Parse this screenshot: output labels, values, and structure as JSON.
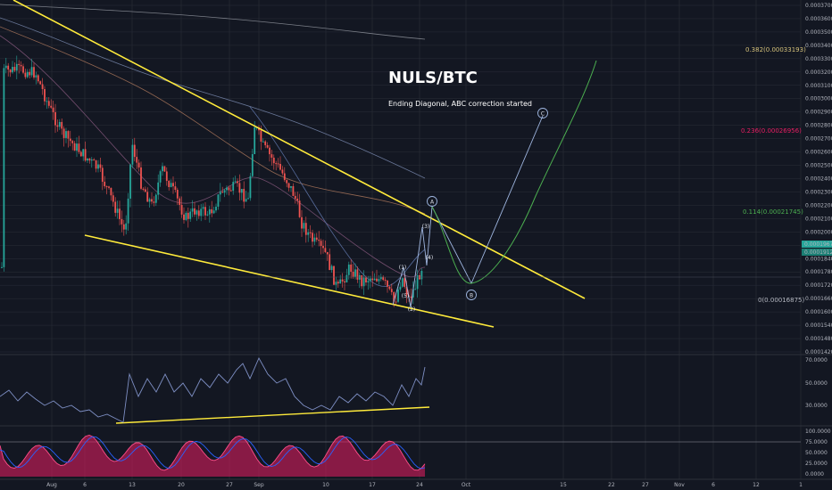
{
  "chart_data": {
    "type": "candlestick",
    "title": "NULS/BTC",
    "subtitle": "Ending Diagonal, ABC correction started",
    "colors": {
      "background": "#131722",
      "grid": "#2a2e39",
      "up": "#26a69a",
      "down": "#ef5350",
      "trendline": "#ffeb3b",
      "projection": "#4caf50",
      "wave_path": "#9fb6e0",
      "fib_382": "#d4c17a",
      "fib_236": "#e91e63",
      "fib_114": "#4caf50",
      "fib_0": "#b2b5be"
    },
    "price_axis": {
      "ticks": [
        "0.00037000",
        "0.00036000",
        "0.00035000",
        "0.00034000",
        "0.00033000",
        "0.00032000",
        "0.00031000",
        "0.00030000",
        "0.00029000",
        "0.00028000",
        "0.00027000",
        "0.00026000",
        "0.00025000",
        "0.00024000",
        "0.00023000",
        "0.00022000",
        "0.00021000",
        "0.00020000",
        "0.00019000",
        "0.00018400",
        "0.00017800",
        "0.00017200",
        "0.00016600",
        "0.00016000",
        "0.00015400",
        "0.00014800",
        "0.00014200"
      ],
      "current_price_tags": [
        "0.00019670",
        "0.00019120"
      ]
    },
    "rsi_axis": {
      "ticks": [
        "70.0000",
        "50.0000",
        "30.0000"
      ]
    },
    "stoch_axis": {
      "ticks": [
        "100.0000",
        "75.0000",
        "50.0000",
        "25.0000",
        "0.0000"
      ]
    },
    "date_labels": [
      "Aug",
      "6",
      "13",
      "20",
      "27",
      "Sep",
      "10",
      "17",
      "24",
      "Oct",
      "15",
      "22",
      "27",
      "Nov",
      "6",
      "12",
      "1"
    ],
    "fib_levels": [
      {
        "label": "0.382(0.00033193)",
        "value": 0.00033193,
        "color_key": "fib_382"
      },
      {
        "label": "0.236(0.00026956)",
        "value": 0.00026956,
        "color_key": "fib_236"
      },
      {
        "label": "0.114(0.00021745)",
        "value": 0.00021745,
        "color_key": "fib_114"
      },
      {
        "label": "0(0.00016875)",
        "value": 0.00016875,
        "color_key": "fib_0"
      }
    ],
    "wave_labels": [
      "A",
      "B",
      "C",
      "(1)",
      "(2)",
      "(3)",
      "(4)",
      "(5)"
    ]
  }
}
